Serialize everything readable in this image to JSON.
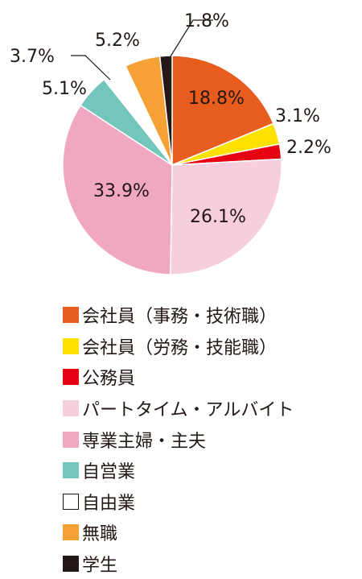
{
  "chart_data": {
    "type": "pie",
    "title": "",
    "start_angle_deg": 0,
    "direction": "clockwise",
    "slices": [
      {
        "label": "会社員（事務・技術職）",
        "value": 18.8,
        "display": "18.8%",
        "color": "#E85D1E",
        "label_mode": "inside"
      },
      {
        "label": "会社員（労務・技能職）",
        "value": 3.1,
        "display": "3.1%",
        "color": "#FFE100",
        "label_mode": "outside"
      },
      {
        "label": "公務員",
        "value": 2.2,
        "display": "2.2%",
        "color": "#E60012",
        "label_mode": "outside"
      },
      {
        "label": "パートタイム・アルバイト",
        "value": 26.1,
        "display": "26.1%",
        "color": "#F6CEDD",
        "label_mode": "inside"
      },
      {
        "label": "専業主婦・主夫",
        "value": 33.9,
        "display": "33.9%",
        "color": "#EFA7C2",
        "label_mode": "inside"
      },
      {
        "label": "自営業",
        "value": 5.1,
        "display": "5.1%",
        "color": "#72C6BB",
        "label_mode": "outside"
      },
      {
        "label": "自由業",
        "value": 3.7,
        "display": "3.7%",
        "color": "#FFFFFF",
        "label_mode": "leader"
      },
      {
        "label": "無職",
        "value": 5.2,
        "display": "5.2%",
        "color": "#F5A136",
        "label_mode": "outside"
      },
      {
        "label": "学生",
        "value": 1.8,
        "display": "1.8%",
        "color": "#231815",
        "label_mode": "leader"
      }
    ],
    "legend": {
      "placement": "bottom-left",
      "items": [
        {
          "label": "会社員（事務・技術職）",
          "color": "#E85D1E"
        },
        {
          "label": "会社員（労務・技能職）",
          "color": "#FFE100"
        },
        {
          "label": "公務員",
          "color": "#E60012"
        },
        {
          "label": "パートタイム・アルバイト",
          "color": "#F6CEDD"
        },
        {
          "label": "専業主婦・主夫",
          "color": "#EFA7C2"
        },
        {
          "label": "自営業",
          "color": "#72C6BB"
        },
        {
          "label": "自由業",
          "color": "#FFFFFF"
        },
        {
          "label": "無職",
          "color": "#F5A136"
        },
        {
          "label": "学生",
          "color": "#231815"
        }
      ]
    }
  }
}
